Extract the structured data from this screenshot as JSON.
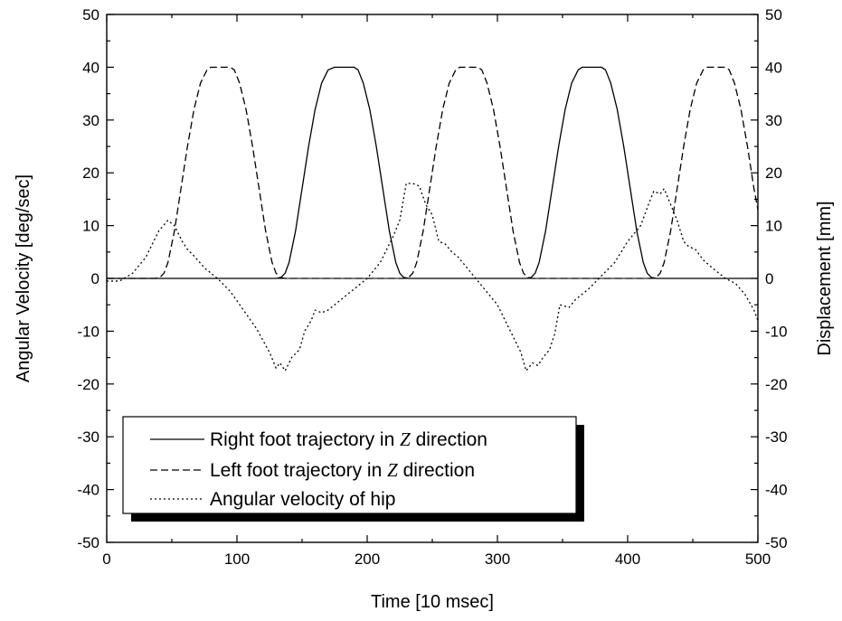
{
  "chart_data": {
    "type": "line",
    "title": "",
    "xlabel": "Time [10 msec]",
    "ylabel_left": "Angular Velocity [deg/sec]",
    "ylabel_right": "Displacement [mm]",
    "xlim": [
      0,
      500
    ],
    "ylim_left": [
      -50,
      50
    ],
    "ylim_right": [
      -50,
      50
    ],
    "x_ticks": [
      0,
      100,
      200,
      300,
      400,
      500
    ],
    "y_ticks": [
      -50,
      -40,
      -30,
      -20,
      -10,
      0,
      10,
      20,
      30,
      40,
      50
    ],
    "grid": false,
    "legend_position": "bottom-left",
    "legend": {
      "right_foot": {
        "prefix": "Right foot trajectory in ",
        "var": "Z",
        "suffix": " direction"
      },
      "left_foot": {
        "prefix": "Left foot trajectory in ",
        "var": "Z",
        "suffix": " direction"
      },
      "hip": {
        "text": "Angular velocity of hip"
      }
    },
    "series": [
      {
        "name": "Right foot trajectory in Z direction",
        "axis": "right",
        "style": "solid",
        "points": [
          [
            0,
            0
          ],
          [
            130,
            0
          ],
          [
            134,
            0.2
          ],
          [
            137,
            1
          ],
          [
            140,
            3
          ],
          [
            145,
            9
          ],
          [
            150,
            17
          ],
          [
            155,
            25
          ],
          [
            160,
            32
          ],
          [
            165,
            37
          ],
          [
            170,
            39.5
          ],
          [
            175,
            40
          ],
          [
            190,
            40
          ],
          [
            193,
            39.5
          ],
          [
            197,
            37
          ],
          [
            202,
            32
          ],
          [
            207,
            25
          ],
          [
            212,
            17
          ],
          [
            217,
            9
          ],
          [
            222,
            3
          ],
          [
            225,
            1
          ],
          [
            228,
            0.2
          ],
          [
            232,
            0
          ],
          [
            322,
            0
          ],
          [
            326,
            0.2
          ],
          [
            329,
            1
          ],
          [
            332,
            3
          ],
          [
            337,
            9
          ],
          [
            342,
            17
          ],
          [
            347,
            25
          ],
          [
            352,
            32
          ],
          [
            357,
            37
          ],
          [
            362,
            39.5
          ],
          [
            365,
            40
          ],
          [
            380,
            40
          ],
          [
            383,
            39.5
          ],
          [
            387,
            37
          ],
          [
            392,
            32
          ],
          [
            397,
            25
          ],
          [
            402,
            17
          ],
          [
            407,
            9
          ],
          [
            412,
            3
          ],
          [
            415,
            1
          ],
          [
            418,
            0.2
          ],
          [
            422,
            0
          ],
          [
            500,
            0
          ]
        ]
      },
      {
        "name": "Left foot trajectory in Z direction",
        "axis": "right",
        "style": "dashed",
        "points": [
          [
            0,
            0
          ],
          [
            37,
            0
          ],
          [
            41,
            0.2
          ],
          [
            44,
            1
          ],
          [
            47,
            3
          ],
          [
            52,
            9
          ],
          [
            57,
            17
          ],
          [
            62,
            25
          ],
          [
            67,
            32
          ],
          [
            72,
            37
          ],
          [
            77,
            39.5
          ],
          [
            80,
            40
          ],
          [
            95,
            40
          ],
          [
            98,
            39.5
          ],
          [
            102,
            37
          ],
          [
            107,
            32
          ],
          [
            112,
            25
          ],
          [
            117,
            17
          ],
          [
            122,
            9
          ],
          [
            127,
            3
          ],
          [
            130,
            1
          ],
          [
            133,
            0.2
          ],
          [
            137,
            0
          ],
          [
            228,
            0
          ],
          [
            232,
            0.2
          ],
          [
            235,
            1
          ],
          [
            238,
            3
          ],
          [
            243,
            9
          ],
          [
            248,
            17
          ],
          [
            253,
            25
          ],
          [
            258,
            32
          ],
          [
            263,
            37
          ],
          [
            268,
            39.5
          ],
          [
            271,
            40
          ],
          [
            285,
            40
          ],
          [
            288,
            39.5
          ],
          [
            292,
            37
          ],
          [
            297,
            32
          ],
          [
            302,
            25
          ],
          [
            307,
            17
          ],
          [
            312,
            9
          ],
          [
            317,
            3
          ],
          [
            320,
            1
          ],
          [
            323,
            0.2
          ],
          [
            327,
            0
          ],
          [
            418,
            0
          ],
          [
            422,
            0.2
          ],
          [
            425,
            1
          ],
          [
            428,
            3
          ],
          [
            433,
            9
          ],
          [
            438,
            17
          ],
          [
            443,
            25
          ],
          [
            448,
            32
          ],
          [
            453,
            37
          ],
          [
            458,
            39.5
          ],
          [
            461,
            40
          ],
          [
            475,
            40
          ],
          [
            478,
            39.5
          ],
          [
            482,
            37
          ],
          [
            487,
            32
          ],
          [
            492,
            25
          ],
          [
            497,
            17
          ],
          [
            500,
            13
          ]
        ]
      },
      {
        "name": "Angular velocity of hip",
        "axis": "left",
        "style": "dotted",
        "points": [
          [
            0,
            -0.5
          ],
          [
            10,
            -0.5
          ],
          [
            20,
            1
          ],
          [
            30,
            4
          ],
          [
            40,
            9
          ],
          [
            47,
            11
          ],
          [
            52,
            10
          ],
          [
            58,
            7
          ],
          [
            62,
            5.5
          ],
          [
            68,
            4
          ],
          [
            75,
            2
          ],
          [
            85,
            0
          ],
          [
            95,
            -2.5
          ],
          [
            105,
            -6
          ],
          [
            115,
            -9.5
          ],
          [
            125,
            -14
          ],
          [
            130,
            -17
          ],
          [
            133,
            -16
          ],
          [
            137,
            -17.5
          ],
          [
            142,
            -15
          ],
          [
            148,
            -13.5
          ],
          [
            152,
            -10
          ],
          [
            157,
            -8
          ],
          [
            160,
            -6
          ],
          [
            165,
            -6.5
          ],
          [
            170,
            -6
          ],
          [
            175,
            -5
          ],
          [
            180,
            -4
          ],
          [
            190,
            -2
          ],
          [
            200,
            0
          ],
          [
            210,
            3
          ],
          [
            220,
            8
          ],
          [
            225,
            11
          ],
          [
            230,
            18
          ],
          [
            235,
            18
          ],
          [
            240,
            17.5
          ],
          [
            245,
            14
          ],
          [
            250,
            12
          ],
          [
            255,
            7
          ],
          [
            260,
            6.5
          ],
          [
            265,
            5
          ],
          [
            270,
            4
          ],
          [
            280,
            1
          ],
          [
            290,
            -2
          ],
          [
            300,
            -5
          ],
          [
            310,
            -10
          ],
          [
            318,
            -14
          ],
          [
            322,
            -17.5
          ],
          [
            327,
            -16
          ],
          [
            331,
            -16.5
          ],
          [
            335,
            -15
          ],
          [
            340,
            -13.5
          ],
          [
            344,
            -10.5
          ],
          [
            348,
            -5
          ],
          [
            355,
            -5.5
          ],
          [
            360,
            -4
          ],
          [
            370,
            -2
          ],
          [
            380,
            0.5
          ],
          [
            390,
            3
          ],
          [
            400,
            7
          ],
          [
            410,
            10
          ],
          [
            416,
            14
          ],
          [
            420,
            16.5
          ],
          [
            425,
            16
          ],
          [
            428,
            17
          ],
          [
            433,
            14
          ],
          [
            438,
            11
          ],
          [
            443,
            7
          ],
          [
            447,
            6
          ],
          [
            452,
            5.5
          ],
          [
            458,
            3.5
          ],
          [
            465,
            2
          ],
          [
            475,
            0
          ],
          [
            483,
            -1
          ],
          [
            490,
            -3
          ],
          [
            497,
            -6
          ],
          [
            500,
            -8
          ]
        ]
      }
    ]
  }
}
